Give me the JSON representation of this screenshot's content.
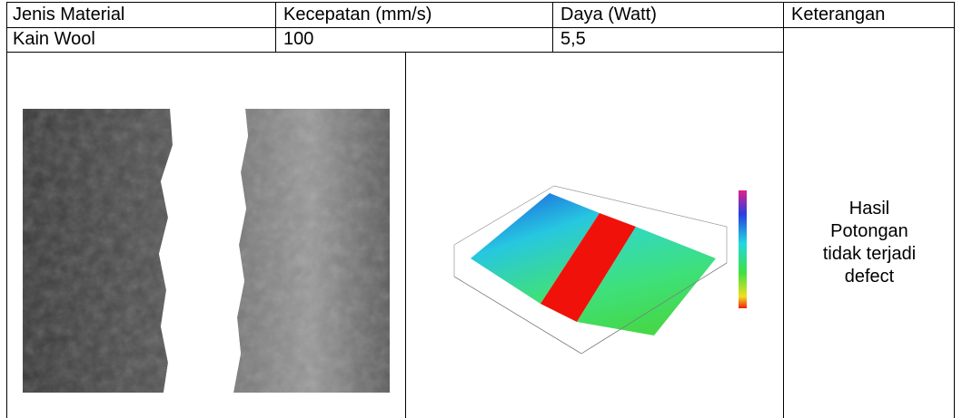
{
  "table": {
    "header": [
      "Jenis Material",
      "Kecepatan (mm/s)",
      "Daya (Watt)",
      "Keterangan"
    ],
    "rows": [
      [
        "Kain Wool",
        "100",
        "5,5",
        "Hasil Potongan tidak terjadi defect"
      ]
    ]
  }
}
